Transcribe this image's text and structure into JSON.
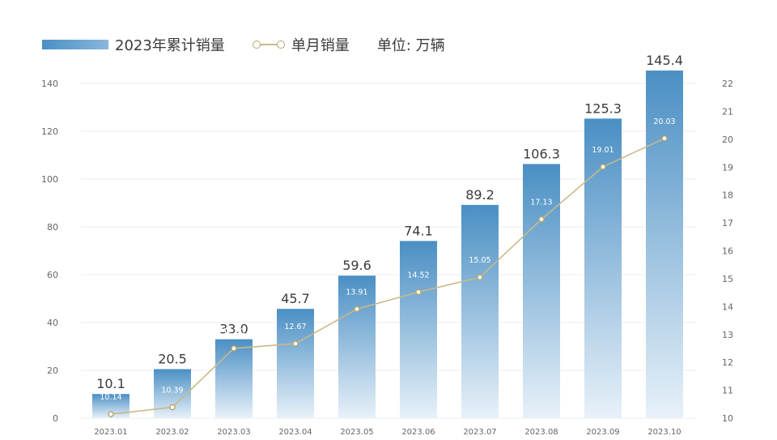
{
  "legend": {
    "bar_label": "2023年累计销量",
    "line_label": "单月销量",
    "unit_label": "单位: 万辆"
  },
  "colors": {
    "bar_top": "#4a8fc4",
    "bar_bottom": "#e8f1f9",
    "line": "#c9b98a",
    "marker": "#b8a46a",
    "grid": "#ececec",
    "axis_text": "#666666",
    "value_text": "#3b3b3b"
  },
  "chart_data": {
    "type": "bar",
    "categories": [
      "2023.01",
      "2023.02",
      "2023.03",
      "2023.04",
      "2023.05",
      "2023.06",
      "2023.07",
      "2023.08",
      "2023.09",
      "2023.10"
    ],
    "series": [
      {
        "name": "2023年累计销量",
        "type": "bar",
        "axis": "left",
        "values": [
          10.1,
          20.5,
          33.0,
          45.7,
          59.6,
          74.1,
          89.2,
          106.3,
          125.3,
          145.4
        ],
        "labels": [
          "10.1",
          "20.5",
          "33.0",
          "45.7",
          "59.6",
          "74.1",
          "89.2",
          "106.3",
          "125.3",
          "145.4"
        ]
      },
      {
        "name": "单月销量",
        "type": "line",
        "axis": "right",
        "values": [
          10.14,
          10.39,
          12.5,
          12.67,
          13.91,
          14.52,
          15.05,
          17.13,
          19.01,
          20.03
        ],
        "labels": [
          "10.14",
          "10.39",
          "12.50",
          "12.67",
          "13.91",
          "14.52",
          "15.05",
          "17.13",
          "19.01",
          "20.03"
        ]
      }
    ],
    "y_left": {
      "ylim": [
        0,
        140
      ],
      "ticks": [
        "0",
        "20",
        "40",
        "60",
        "80",
        "100",
        "120",
        "140"
      ]
    },
    "y_right": {
      "ylim": [
        10,
        22
      ],
      "ticks": [
        "10",
        "11",
        "12",
        "13",
        "14",
        "15",
        "16",
        "17",
        "18",
        "19",
        "20",
        "21",
        "22"
      ]
    },
    "grid": true,
    "legend_position": "top-left"
  }
}
